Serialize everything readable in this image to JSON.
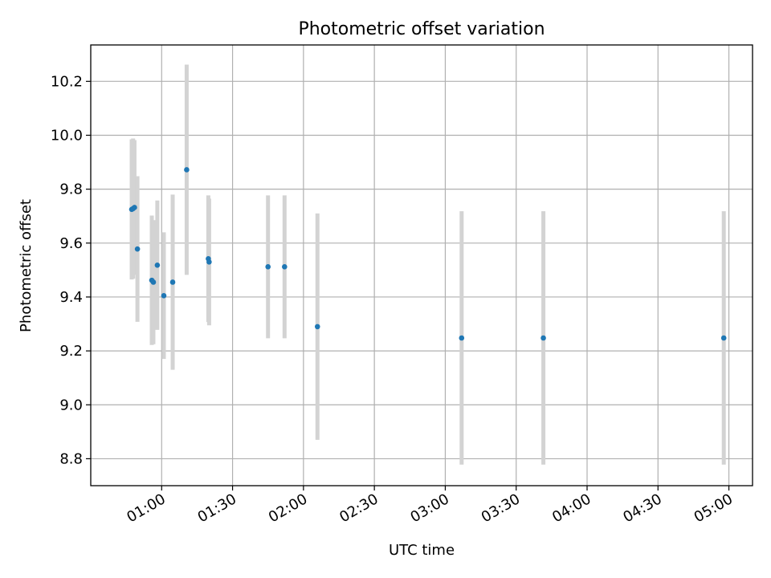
{
  "chart_data": {
    "type": "scatter",
    "title": "Photometric offset variation",
    "xlabel": "UTC time",
    "ylabel": "Photometric offset",
    "x_unit": "UTC time of day (HH:MM)",
    "xlim": [
      "00:30",
      "05:10"
    ],
    "ylim": [
      8.7,
      10.335
    ],
    "xticks": [
      "01:00",
      "01:30",
      "02:00",
      "02:30",
      "03:00",
      "03:30",
      "04:00",
      "04:30",
      "05:00"
    ],
    "yticks": [
      8.8,
      9.0,
      9.2,
      9.4,
      9.6,
      9.8,
      10.0,
      10.2
    ],
    "xtick_rotation_deg": 30,
    "grid": true,
    "legend": "none",
    "marker_color": "#1f77b4",
    "errorbar_color": "#d3d3d3",
    "series": [
      {
        "points": [
          {
            "x": "00:47:20",
            "y": 9.725,
            "err": 0.26
          },
          {
            "x": "00:47:55",
            "y": 9.728,
            "err": 0.26
          },
          {
            "x": "00:48:30",
            "y": 9.732,
            "err": 0.25
          },
          {
            "x": "00:49:45",
            "y": 9.578,
            "err": 0.27
          },
          {
            "x": "00:55:50",
            "y": 9.462,
            "err": 0.24
          },
          {
            "x": "00:56:30",
            "y": 9.455,
            "err": 0.23
          },
          {
            "x": "00:58:10",
            "y": 9.518,
            "err": 0.24
          },
          {
            "x": "01:00:55",
            "y": 9.405,
            "err": 0.235
          },
          {
            "x": "01:04:40",
            "y": 9.455,
            "err": 0.325
          },
          {
            "x": "01:10:35",
            "y": 9.872,
            "err": 0.39
          },
          {
            "x": "01:19:45",
            "y": 9.542,
            "err": 0.235
          },
          {
            "x": "01:20:05",
            "y": 9.53,
            "err": 0.235
          },
          {
            "x": "01:45:00",
            "y": 9.512,
            "err": 0.265
          },
          {
            "x": "01:52:00",
            "y": 9.512,
            "err": 0.265
          },
          {
            "x": "02:05:55",
            "y": 9.29,
            "err": 0.42
          },
          {
            "x": "03:06:55",
            "y": 9.248,
            "err": 0.47
          },
          {
            "x": "03:41:30",
            "y": 9.248,
            "err": 0.47
          },
          {
            "x": "04:57:50",
            "y": 9.248,
            "err": 0.47
          }
        ]
      }
    ]
  }
}
